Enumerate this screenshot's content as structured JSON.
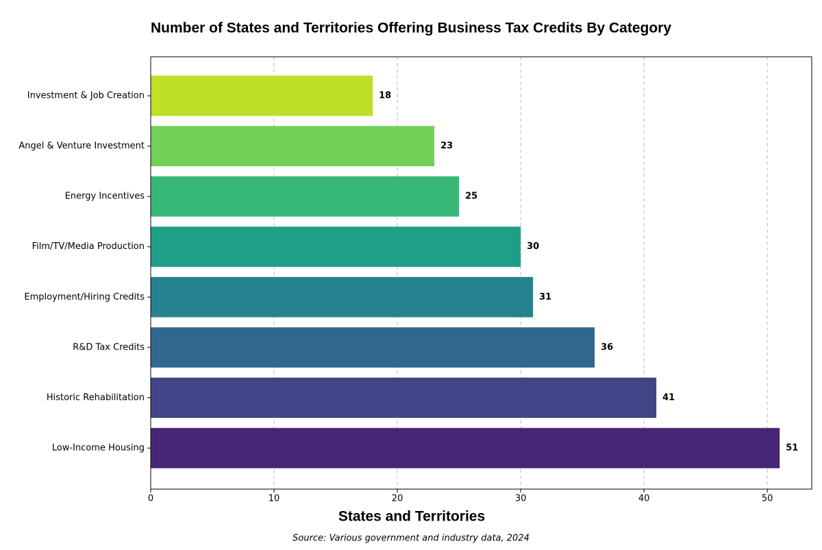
{
  "chart_data": {
    "type": "barh",
    "title": "Number of States and Territories Offering Business Tax Credits By Category",
    "xlabel": "States and Territories",
    "source": "Source: Various government and industry data, 2024",
    "categories": [
      "Investment & Job Creation",
      "Angel & Venture Investment",
      "Energy Incentives",
      "Film/TV/Media Production",
      "Employment/Hiring Credits",
      "R&D Tax Credits",
      "Historic Rehabilitation",
      "Low-Income Housing"
    ],
    "values": [
      18,
      23,
      25,
      30,
      31,
      36,
      41,
      51
    ],
    "colors": [
      "#bddf26",
      "#73d056",
      "#37b878",
      "#1f9f88",
      "#26828e",
      "#31688e",
      "#414487",
      "#482475"
    ],
    "xlim": [
      0,
      53.6
    ],
    "xticks": [
      0,
      10,
      20,
      30,
      40,
      50
    ],
    "grid": true
  }
}
